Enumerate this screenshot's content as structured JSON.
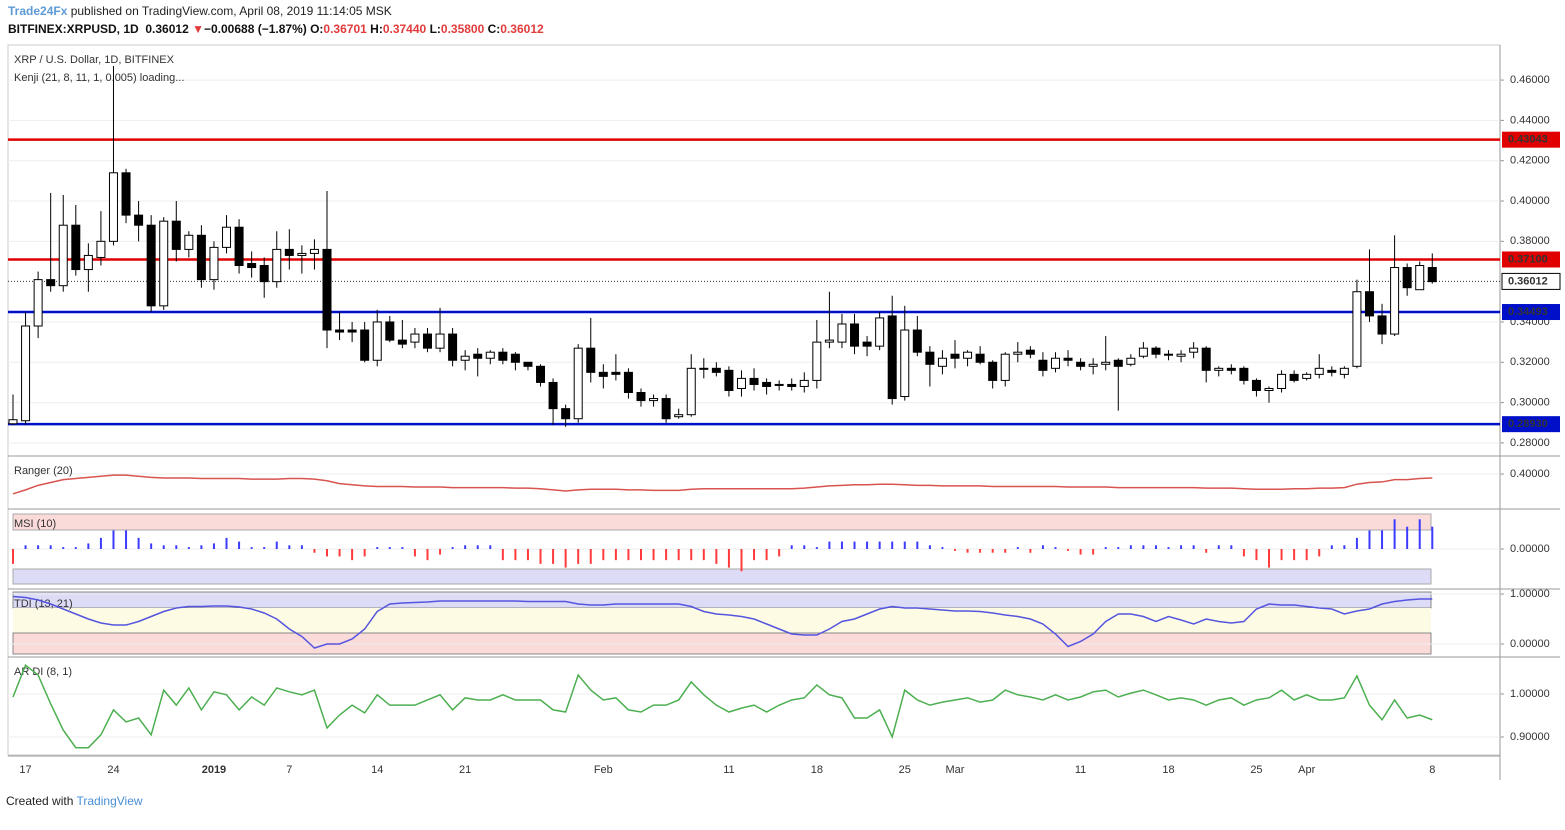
{
  "header": {
    "author": "Trade24Fx",
    "published": " published on TradingView.com, April 08, 2019 11:14:05 MSK",
    "symbol": "BITFINEX:XRPUSD, 1D",
    "last": "0.36012",
    "arrow": "▼",
    "change": "−0.00688 (−1.87%)",
    "ohlc": [
      {
        "k": "O:",
        "v": "0.36701"
      },
      {
        "k": "H:",
        "v": "0.37440"
      },
      {
        "k": "L:",
        "v": "0.35800"
      },
      {
        "k": "C:",
        "v": "0.36012"
      }
    ]
  },
  "footer": {
    "created": "Created with",
    "brand": "TradingView"
  },
  "chart_data": [
    {
      "type": "candlestick",
      "title": "XRP / U.S. Dollar, 1D, BITFINEX",
      "subtitle": "Kenji (21, 8, 11, 1, 0.005) loading...",
      "categories": [
        null,
        "17",
        null,
        null,
        null,
        null,
        null,
        null,
        "24",
        null,
        null,
        null,
        null,
        null,
        null,
        null,
        "2019",
        null,
        null,
        null,
        null,
        null,
        "7",
        null,
        null,
        null,
        null,
        null,
        null,
        "14",
        null,
        null,
        null,
        null,
        null,
        null,
        "21",
        null,
        null,
        null,
        null,
        null,
        null,
        null,
        null,
        null,
        null,
        "Feb",
        null,
        null,
        null,
        null,
        null,
        null,
        null,
        null,
        null,
        "11",
        null,
        null,
        null,
        null,
        null,
        null,
        "18",
        null,
        null,
        null,
        null,
        null,
        null,
        "25",
        null,
        null,
        null,
        "Mar",
        null,
        null,
        null,
        null,
        null,
        null,
        null,
        null,
        null,
        "11",
        null,
        null,
        null,
        null,
        null,
        null,
        "18",
        null,
        null,
        null,
        null,
        null,
        null,
        "25",
        null,
        null,
        null,
        "Apr",
        null,
        null,
        null,
        null,
        null,
        null,
        null,
        null,
        null,
        "8"
      ],
      "open": [
        0.2895,
        0.291,
        0.338,
        0.361,
        0.358,
        0.388,
        0.366,
        0.372,
        0.38,
        0.414,
        0.393,
        0.388,
        0.348,
        0.39,
        0.376,
        0.383,
        0.361,
        0.377,
        0.387,
        0.369,
        0.368,
        0.36,
        0.376,
        0.373,
        0.374,
        0.376,
        0.336,
        0.336,
        0.336,
        0.321,
        0.34,
        0.331,
        0.33,
        0.334,
        0.327,
        0.334,
        0.321,
        0.324,
        0.322,
        0.325,
        0.324,
        0.32,
        0.318,
        0.31,
        0.297,
        0.292,
        0.327,
        0.315,
        0.315,
        0.315,
        0.305,
        0.301,
        0.302,
        0.293,
        0.294,
        0.317,
        0.317,
        0.316,
        0.307,
        0.312,
        0.31,
        0.309,
        0.309,
        0.308,
        0.311,
        0.33,
        0.33,
        0.339,
        0.33,
        0.328,
        0.343,
        0.303,
        0.336,
        0.325,
        0.318,
        0.324,
        0.322,
        0.324,
        0.32,
        0.311,
        0.324,
        0.326,
        0.321,
        0.317,
        0.322,
        0.32,
        0.318,
        0.319,
        0.321,
        0.319,
        0.323,
        0.327,
        0.324,
        0.323,
        0.325,
        0.327,
        0.316,
        0.317,
        0.317,
        0.311,
        0.306,
        0.307,
        0.314,
        0.312,
        0.314,
        0.316,
        0.314,
        0.318,
        0.355,
        0.343,
        0.334,
        0.367,
        0.356,
        0.367
      ],
      "high": [
        0.304,
        0.345,
        0.365,
        0.404,
        0.403,
        0.398,
        0.379,
        0.395,
        0.467,
        0.416,
        0.4,
        0.393,
        0.392,
        0.4,
        0.385,
        0.388,
        0.38,
        0.393,
        0.391,
        0.375,
        0.372,
        0.385,
        0.386,
        0.378,
        0.381,
        0.405,
        0.345,
        0.34,
        0.34,
        0.346,
        0.343,
        0.341,
        0.337,
        0.337,
        0.347,
        0.337,
        0.326,
        0.327,
        0.326,
        0.327,
        0.325,
        0.32,
        0.319,
        0.312,
        0.299,
        0.329,
        0.342,
        0.319,
        0.324,
        0.317,
        0.307,
        0.304,
        0.304,
        0.297,
        0.324,
        0.322,
        0.32,
        0.318,
        0.316,
        0.317,
        0.312,
        0.311,
        0.312,
        0.315,
        0.341,
        0.355,
        0.344,
        0.344,
        0.333,
        0.345,
        0.353,
        0.348,
        0.343,
        0.328,
        0.326,
        0.331,
        0.326,
        0.328,
        0.321,
        0.325,
        0.33,
        0.328,
        0.325,
        0.325,
        0.326,
        0.322,
        0.322,
        0.333,
        0.322,
        0.324,
        0.33,
        0.328,
        0.326,
        0.326,
        0.33,
        0.328,
        0.318,
        0.319,
        0.318,
        0.312,
        0.308,
        0.316,
        0.316,
        0.315,
        0.324,
        0.318,
        0.318,
        0.361,
        0.376,
        0.349,
        0.383,
        0.369,
        0.37,
        0.374
      ],
      "low": [
        0.289,
        0.289,
        0.332,
        0.355,
        0.355,
        0.363,
        0.355,
        0.368,
        0.378,
        0.389,
        0.38,
        0.345,
        0.346,
        0.37,
        0.372,
        0.357,
        0.356,
        0.374,
        0.364,
        0.362,
        0.352,
        0.357,
        0.366,
        0.364,
        0.366,
        0.327,
        0.331,
        0.33,
        0.32,
        0.318,
        0.33,
        0.327,
        0.327,
        0.325,
        0.325,
        0.318,
        0.316,
        0.313,
        0.319,
        0.319,
        0.316,
        0.316,
        0.308,
        0.289,
        0.288,
        0.29,
        0.31,
        0.307,
        0.311,
        0.302,
        0.298,
        0.298,
        0.29,
        0.292,
        0.293,
        0.312,
        0.313,
        0.303,
        0.303,
        0.306,
        0.304,
        0.306,
        0.306,
        0.305,
        0.307,
        0.327,
        0.327,
        0.324,
        0.323,
        0.326,
        0.299,
        0.301,
        0.323,
        0.308,
        0.314,
        0.317,
        0.318,
        0.319,
        0.307,
        0.308,
        0.32,
        0.322,
        0.313,
        0.315,
        0.318,
        0.316,
        0.314,
        0.316,
        0.296,
        0.318,
        0.322,
        0.322,
        0.321,
        0.32,
        0.322,
        0.31,
        0.313,
        0.314,
        0.309,
        0.303,
        0.3,
        0.305,
        0.31,
        0.311,
        0.312,
        0.313,
        0.312,
        0.317,
        0.34,
        0.329,
        0.333,
        0.353,
        0.356,
        0.359
      ],
      "close": [
        0.2915,
        0.338,
        0.361,
        0.358,
        0.388,
        0.366,
        0.373,
        0.38,
        0.414,
        0.393,
        0.388,
        0.348,
        0.39,
        0.376,
        0.383,
        0.361,
        0.377,
        0.387,
        0.368,
        0.367,
        0.36,
        0.376,
        0.373,
        0.374,
        0.376,
        0.336,
        0.335,
        0.335,
        0.321,
        0.34,
        0.331,
        0.329,
        0.334,
        0.327,
        0.334,
        0.321,
        0.323,
        0.322,
        0.325,
        0.321,
        0.32,
        0.318,
        0.31,
        0.297,
        0.292,
        0.327,
        0.315,
        0.313,
        0.314,
        0.305,
        0.301,
        0.302,
        0.292,
        0.294,
        0.317,
        0.317,
        0.315,
        0.306,
        0.312,
        0.309,
        0.308,
        0.309,
        0.308,
        0.311,
        0.33,
        0.331,
        0.339,
        0.328,
        0.328,
        0.342,
        0.302,
        0.336,
        0.325,
        0.319,
        0.322,
        0.322,
        0.325,
        0.32,
        0.311,
        0.324,
        0.325,
        0.324,
        0.316,
        0.322,
        0.321,
        0.318,
        0.319,
        0.32,
        0.318,
        0.322,
        0.327,
        0.324,
        0.324,
        0.324,
        0.327,
        0.316,
        0.317,
        0.316,
        0.311,
        0.306,
        0.307,
        0.314,
        0.311,
        0.314,
        0.317,
        0.315,
        0.317,
        0.355,
        0.343,
        0.334,
        0.367,
        0.357,
        0.368,
        0.36
      ],
      "up_color": "#ffffff",
      "down_color": "#000000",
      "ylim": [
        0.274,
        0.4774
      ],
      "yticks": [
        {
          "value": 0.46,
          "label": "0.46000"
        },
        {
          "value": 0.44,
          "label": "0.44000"
        },
        {
          "value": 0.42,
          "label": "0.42000"
        },
        {
          "value": 0.4,
          "label": "0.40000"
        },
        {
          "value": 0.38,
          "label": "0.38000"
        },
        {
          "value": 0.34,
          "label": "0.34000"
        },
        {
          "value": 0.32,
          "label": "0.32000"
        },
        {
          "value": 0.3,
          "label": "0.30000"
        },
        {
          "value": 0.28,
          "label": "0.28000"
        }
      ],
      "levels": [
        {
          "value": 0.43043,
          "label": "0.43043",
          "color": "#e00000"
        },
        {
          "value": 0.371,
          "label": "0.37100",
          "color": "#e00000"
        },
        {
          "value": 0.34493,
          "label": "0.34493",
          "color": "#0010c8"
        },
        {
          "value": 0.2893,
          "label": "0.28930",
          "color": "#0010c8"
        }
      ],
      "last": {
        "value": 0.36012,
        "label": "0.36012"
      }
    },
    {
      "type": "line",
      "title": "Ranger (20)",
      "color": "#d9534f",
      "values": [
        0.365,
        0.372,
        0.38,
        0.385,
        0.39,
        0.392,
        0.394,
        0.396,
        0.398,
        0.398,
        0.396,
        0.394,
        0.393,
        0.393,
        0.393,
        0.392,
        0.392,
        0.392,
        0.392,
        0.391,
        0.391,
        0.391,
        0.392,
        0.392,
        0.391,
        0.388,
        0.383,
        0.381,
        0.379,
        0.378,
        0.378,
        0.378,
        0.377,
        0.377,
        0.377,
        0.376,
        0.376,
        0.376,
        0.376,
        0.376,
        0.375,
        0.375,
        0.374,
        0.372,
        0.37,
        0.372,
        0.373,
        0.373,
        0.373,
        0.372,
        0.372,
        0.371,
        0.371,
        0.371,
        0.373,
        0.374,
        0.374,
        0.374,
        0.374,
        0.374,
        0.374,
        0.374,
        0.374,
        0.375,
        0.377,
        0.379,
        0.38,
        0.381,
        0.381,
        0.382,
        0.382,
        0.381,
        0.38,
        0.38,
        0.379,
        0.379,
        0.379,
        0.379,
        0.378,
        0.378,
        0.378,
        0.378,
        0.378,
        0.378,
        0.377,
        0.377,
        0.377,
        0.377,
        0.376,
        0.376,
        0.376,
        0.376,
        0.376,
        0.376,
        0.376,
        0.375,
        0.375,
        0.375,
        0.374,
        0.373,
        0.373,
        0.373,
        0.374,
        0.374,
        0.375,
        0.375,
        0.376,
        0.382,
        0.385,
        0.386,
        0.39,
        0.39,
        0.392,
        0.393
      ],
      "ylim": [
        0.34,
        0.43
      ],
      "yticks": [
        {
          "value": 0.4,
          "label": "0.40000"
        }
      ]
    },
    {
      "type": "bar",
      "title": "MSI (10)",
      "pos_color": "#3b3bff",
      "neg_color": "#ff3b3b",
      "values": [
        -0.4,
        0.1,
        0.1,
        0.1,
        0.05,
        0.05,
        0.15,
        0.3,
        0.5,
        0.5,
        0.3,
        0.15,
        0.1,
        0.1,
        0.05,
        0.1,
        0.15,
        0.3,
        0.2,
        0.05,
        0.05,
        0.2,
        0.1,
        0.1,
        -0.1,
        -0.2,
        -0.2,
        -0.3,
        -0.2,
        0.05,
        0.05,
        0.05,
        -0.2,
        -0.3,
        -0.15,
        0.05,
        0.1,
        0.1,
        0.1,
        -0.3,
        -0.3,
        -0.3,
        -0.4,
        -0.4,
        -0.5,
        -0.4,
        -0.4,
        -0.3,
        -0.3,
        -0.3,
        -0.3,
        -0.3,
        -0.3,
        -0.3,
        -0.3,
        -0.3,
        -0.4,
        -0.5,
        -0.6,
        -0.3,
        -0.3,
        -0.2,
        0.1,
        0.1,
        0.05,
        0.2,
        0.2,
        0.2,
        0.2,
        0.2,
        0.2,
        0.2,
        0.2,
        0.1,
        0.05,
        -0.05,
        -0.1,
        -0.1,
        -0.1,
        -0.1,
        0.05,
        -0.1,
        0.1,
        0.05,
        -0.05,
        -0.15,
        -0.15,
        0.05,
        0.05,
        0.1,
        0.1,
        0.1,
        0.05,
        0.1,
        0.1,
        -0.1,
        0.1,
        0.1,
        -0.2,
        -0.3,
        -0.5,
        -0.3,
        -0.3,
        -0.3,
        -0.2,
        0.1,
        0.1,
        0.3,
        0.5,
        0.5,
        0.8,
        0.6,
        0.8,
        0.6
      ],
      "ylim": [
        -1.05,
        1.05
      ],
      "yticks": [
        {
          "value": 0,
          "label": "0.00000"
        }
      ]
    },
    {
      "type": "line",
      "title": "TDI (13, 21)",
      "color": "#5555e0",
      "values": [
        0.95,
        0.93,
        0.88,
        0.8,
        0.7,
        0.6,
        0.5,
        0.42,
        0.38,
        0.38,
        0.45,
        0.55,
        0.65,
        0.72,
        0.75,
        0.75,
        0.76,
        0.76,
        0.74,
        0.7,
        0.62,
        0.5,
        0.3,
        0.15,
        -0.08,
        0.0,
        0.0,
        0.1,
        0.3,
        0.65,
        0.8,
        0.82,
        0.83,
        0.84,
        0.86,
        0.86,
        0.86,
        0.86,
        0.86,
        0.86,
        0.86,
        0.85,
        0.85,
        0.85,
        0.85,
        0.8,
        0.78,
        0.78,
        0.8,
        0.8,
        0.8,
        0.8,
        0.8,
        0.8,
        0.75,
        0.65,
        0.6,
        0.58,
        0.55,
        0.5,
        0.4,
        0.3,
        0.2,
        0.18,
        0.18,
        0.3,
        0.45,
        0.5,
        0.6,
        0.7,
        0.75,
        0.72,
        0.72,
        0.7,
        0.68,
        0.66,
        0.66,
        0.65,
        0.62,
        0.58,
        0.55,
        0.5,
        0.4,
        0.2,
        -0.05,
        0.05,
        0.2,
        0.45,
        0.6,
        0.6,
        0.55,
        0.45,
        0.55,
        0.48,
        0.4,
        0.5,
        0.45,
        0.42,
        0.45,
        0.7,
        0.8,
        0.78,
        0.78,
        0.75,
        0.72,
        0.7,
        0.6,
        0.66,
        0.7,
        0.8,
        0.85,
        0.88,
        0.9,
        0.9
      ],
      "ylim": [
        -0.24,
        1.08
      ],
      "yticks": [
        {
          "value": 1,
          "label": "1.00000"
        },
        {
          "value": 0,
          "label": "0.00000"
        }
      ]
    },
    {
      "type": "line",
      "title": "AR DI (8, 1)",
      "color": "#4caf50",
      "values": [
        0.993,
        1.067,
        1.044,
        0.977,
        0.916,
        0.875,
        0.875,
        0.905,
        0.963,
        0.935,
        0.944,
        0.905,
        1.009,
        0.974,
        1.014,
        0.963,
        1.005,
        0.998,
        0.963,
        0.993,
        0.974,
        1.014,
        1.005,
        0.998,
        1.009,
        0.921,
        0.951,
        0.974,
        0.956,
        0.998,
        0.974,
        0.974,
        0.974,
        0.986,
        0.998,
        0.963,
        0.991,
        0.986,
        0.986,
        0.998,
        0.986,
        0.986,
        0.986,
        0.963,
        0.958,
        1.044,
        1.009,
        0.986,
        0.991,
        0.963,
        0.958,
        0.974,
        0.974,
        0.986,
        1.028,
        0.998,
        0.974,
        0.958,
        0.967,
        0.974,
        0.958,
        0.974,
        0.986,
        0.991,
        1.021,
        0.998,
        0.991,
        0.944,
        0.944,
        0.963,
        0.9,
        1.009,
        0.986,
        0.974,
        0.981,
        0.986,
        0.991,
        0.981,
        0.986,
        1.009,
        0.998,
        0.993,
        0.986,
        0.998,
        0.986,
        0.993,
        1.005,
        1.009,
        0.993,
        1.002,
        1.009,
        0.998,
        0.986,
        0.991,
        0.986,
        0.974,
        0.986,
        0.991,
        0.974,
        0.986,
        0.991,
        1.009,
        0.986,
        0.998,
        0.986,
        0.986,
        0.991,
        1.042,
        0.974,
        0.94,
        0.986,
        0.944,
        0.951,
        0.94
      ],
      "ylim": [
        0.858,
        1.0837
      ],
      "yticks": [
        {
          "value": 1,
          "label": "1.00000"
        },
        {
          "value": 0.9,
          "label": "0.90000"
        }
      ]
    }
  ]
}
